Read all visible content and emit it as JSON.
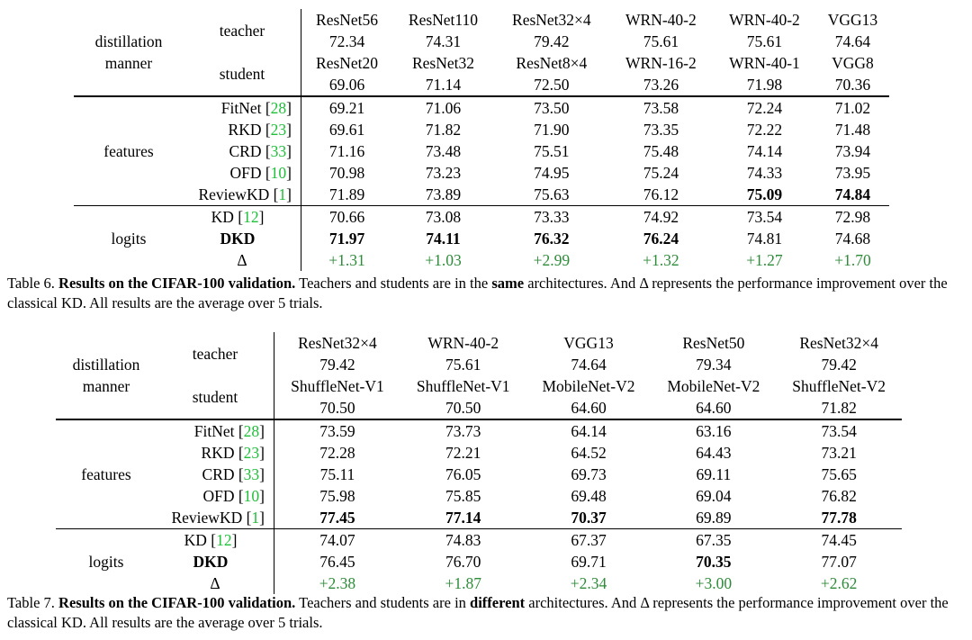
{
  "table6": {
    "manner_label": "distillation\nmanner",
    "teacher_label": "teacher",
    "student_label": "student",
    "teachers": [
      {
        "name": "ResNet56",
        "acc": "72.34"
      },
      {
        "name": "ResNet110",
        "acc": "74.31"
      },
      {
        "name": "ResNet32×4",
        "acc": "79.42"
      },
      {
        "name": "WRN-40-2",
        "acc": "75.61"
      },
      {
        "name": "WRN-40-2",
        "acc": "75.61"
      },
      {
        "name": "VGG13",
        "acc": "74.64"
      }
    ],
    "students": [
      {
        "name": "ResNet20",
        "acc": "69.06"
      },
      {
        "name": "ResNet32",
        "acc": "71.14"
      },
      {
        "name": "ResNet8×4",
        "acc": "72.50"
      },
      {
        "name": "WRN-16-2",
        "acc": "73.26"
      },
      {
        "name": "WRN-40-1",
        "acc": "71.98"
      },
      {
        "name": "VGG8",
        "acc": "70.36"
      }
    ],
    "feature_group": "features",
    "feature_rows": [
      {
        "method": "FitNet",
        "ref": "28",
        "values": [
          "69.21",
          "71.06",
          "73.50",
          "73.58",
          "72.24",
          "71.02"
        ],
        "bold": []
      },
      {
        "method": "RKD",
        "ref": "23",
        "values": [
          "69.61",
          "71.82",
          "71.90",
          "73.35",
          "72.22",
          "71.48"
        ],
        "bold": []
      },
      {
        "method": "CRD",
        "ref": "33",
        "values": [
          "71.16",
          "73.48",
          "75.51",
          "75.48",
          "74.14",
          "73.94"
        ],
        "bold": []
      },
      {
        "method": "OFD",
        "ref": "10",
        "values": [
          "70.98",
          "73.23",
          "74.95",
          "75.24",
          "74.33",
          "73.95"
        ],
        "bold": []
      },
      {
        "method": "ReviewKD",
        "ref": "1",
        "values": [
          "71.89",
          "73.89",
          "75.63",
          "76.12",
          "75.09",
          "74.84"
        ],
        "bold": [
          4,
          5
        ]
      }
    ],
    "logit_group": "logits",
    "logit_rows": [
      {
        "method": "KD",
        "ref": "12",
        "values": [
          "70.66",
          "73.08",
          "73.33",
          "74.92",
          "73.54",
          "72.98"
        ],
        "bold": [],
        "method_bold": false
      },
      {
        "method": "DKD",
        "ref": "",
        "values": [
          "71.97",
          "74.11",
          "76.32",
          "76.24",
          "74.81",
          "74.68"
        ],
        "bold": [
          0,
          1,
          2,
          3
        ],
        "method_bold": true
      }
    ],
    "delta_label": "Δ",
    "delta": [
      "+1.31",
      "+1.03",
      "+2.99",
      "+1.32",
      "+1.27",
      "+1.70"
    ],
    "caption_prefix": "Table 6. ",
    "caption_bold": "Results on the CIFAR-100 validation.",
    "caption_mid": " Teachers and students are in the ",
    "caption_bold2": "same",
    "caption_rest": " architectures. And Δ represents the performance improvement over the classical KD. All results are the average over 5 trials."
  },
  "table7": {
    "manner_label": "distillation\nmanner",
    "teacher_label": "teacher",
    "student_label": "student",
    "teachers": [
      {
        "name": "ResNet32×4",
        "acc": "79.42"
      },
      {
        "name": "WRN-40-2",
        "acc": "75.61"
      },
      {
        "name": "VGG13",
        "acc": "74.64"
      },
      {
        "name": "ResNet50",
        "acc": "79.34"
      },
      {
        "name": "ResNet32×4",
        "acc": "79.42"
      }
    ],
    "students": [
      {
        "name": "ShuffleNet-V1",
        "acc": "70.50"
      },
      {
        "name": "ShuffleNet-V1",
        "acc": "70.50"
      },
      {
        "name": "MobileNet-V2",
        "acc": "64.60"
      },
      {
        "name": "MobileNet-V2",
        "acc": "64.60"
      },
      {
        "name": "ShuffleNet-V2",
        "acc": "71.82"
      }
    ],
    "feature_group": "features",
    "feature_rows": [
      {
        "method": "FitNet",
        "ref": "28",
        "values": [
          "73.59",
          "73.73",
          "64.14",
          "63.16",
          "73.54"
        ],
        "bold": []
      },
      {
        "method": "RKD",
        "ref": "23",
        "values": [
          "72.28",
          "72.21",
          "64.52",
          "64.43",
          "73.21"
        ],
        "bold": []
      },
      {
        "method": "CRD",
        "ref": "33",
        "values": [
          "75.11",
          "76.05",
          "69.73",
          "69.11",
          "75.65"
        ],
        "bold": []
      },
      {
        "method": "OFD",
        "ref": "10",
        "values": [
          "75.98",
          "75.85",
          "69.48",
          "69.04",
          "76.82"
        ],
        "bold": []
      },
      {
        "method": "ReviewKD",
        "ref": "1",
        "values": [
          "77.45",
          "77.14",
          "70.37",
          "69.89",
          "77.78"
        ],
        "bold": [
          0,
          1,
          2,
          4
        ]
      }
    ],
    "logit_group": "logits",
    "logit_rows": [
      {
        "method": "KD",
        "ref": "12",
        "values": [
          "74.07",
          "74.83",
          "67.37",
          "67.35",
          "74.45"
        ],
        "bold": [],
        "method_bold": false
      },
      {
        "method": "DKD",
        "ref": "",
        "values": [
          "76.45",
          "76.70",
          "69.71",
          "70.35",
          "77.07"
        ],
        "bold": [
          3
        ],
        "method_bold": true
      }
    ],
    "delta_label": "Δ",
    "delta": [
      "+2.38",
      "+1.87",
      "+2.34",
      "+3.00",
      "+2.62"
    ],
    "caption_prefix": "Table 7. ",
    "caption_bold": "Results on the CIFAR-100 validation.",
    "caption_mid": " Teachers and students are in ",
    "caption_bold2": "different",
    "caption_rest": " architectures. And Δ represents the performance improvement over the classical KD. All results are the average over 5 trials."
  },
  "colors": {
    "citation": "#1fbf3a",
    "delta": "#2e8b3a",
    "text": "#000000"
  }
}
